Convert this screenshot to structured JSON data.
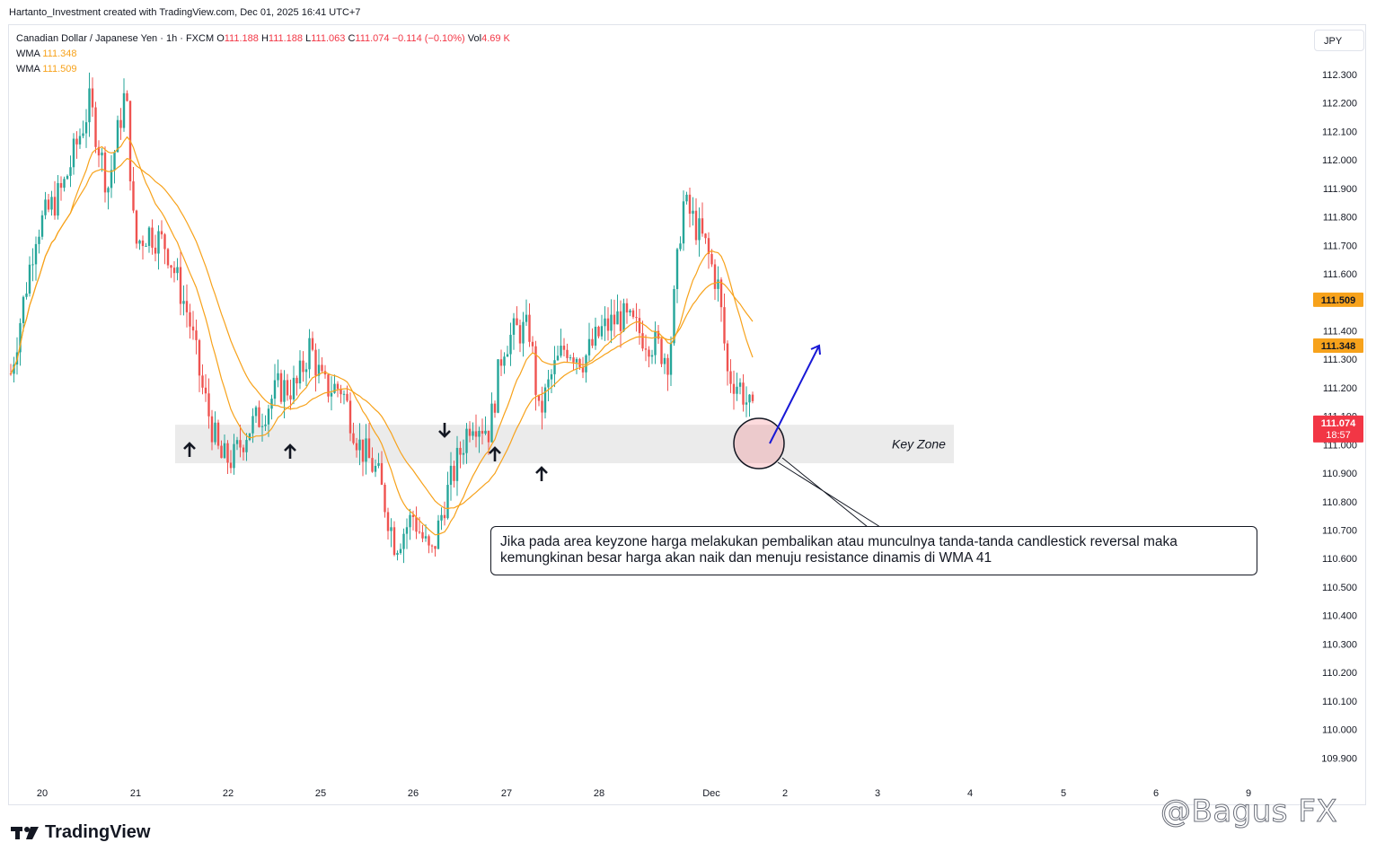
{
  "header": {
    "credit": "Hartanto_Investment created with TradingView.com, Dec 01, 2025 16:41 UTC+7"
  },
  "legend": {
    "symbol": "Canadian Dollar / Japanese Yen · 1h · FXCM",
    "o_label": "O",
    "o": "111.188",
    "h_label": "H",
    "h": "111.188",
    "l_label": "L",
    "l": "111.063",
    "c_label": "C",
    "c": "111.074",
    "chg": "−0.114 (−0.10%)",
    "vol_label": "Vol",
    "vol": "4.69 K",
    "wma1_label": "WMA",
    "wma1": "111.348",
    "wma2_label": "WMA",
    "wma2": "111.509"
  },
  "currency_button": "JPY",
  "colors": {
    "up": "#26a69a",
    "down": "#ef5350",
    "wma": "#f7a21b",
    "price_tag": "#f23645",
    "arrow_blue": "#1919d6",
    "zone": "#ebebeb"
  },
  "chart_data": {
    "type": "candlestick",
    "y_ticks": [
      "112.300",
      "112.200",
      "112.100",
      "112.000",
      "111.900",
      "111.800",
      "111.700",
      "111.600",
      "111.500",
      "111.400",
      "111.300",
      "111.200",
      "111.100",
      "111.000",
      "110.900",
      "110.800",
      "110.700",
      "110.600",
      "110.500",
      "110.400",
      "110.300",
      "110.200",
      "110.100",
      "110.000",
      "109.900"
    ],
    "x_ticks": [
      "20",
      "21",
      "22",
      "25",
      "26",
      "27",
      "28",
      "Dec",
      "2",
      "3",
      "4",
      "5",
      "6",
      "9"
    ],
    "ylim": [
      109.85,
      112.35
    ],
    "price_tags": [
      {
        "value": "111.509",
        "y": 111.509,
        "color": "#f7a21b"
      },
      {
        "value": "111.348",
        "y": 111.348,
        "color": "#f7a21b"
      },
      {
        "value": "111.074",
        "sub": "18:57",
        "y": 111.074,
        "color": "#f23645"
      }
    ],
    "key_zone": {
      "label": "Key Zone",
      "top": 111.07,
      "bottom": 110.935
    },
    "anchors": [
      {
        "date": "20",
        "price": 111.3
      },
      {
        "date": "21",
        "price": 112.2
      },
      {
        "date": "22",
        "price": 111.1
      },
      {
        "date": "25",
        "price": 111.15
      },
      {
        "date": "26",
        "price": 110.7
      },
      {
        "date": "27",
        "price": 111.05
      },
      {
        "date": "28",
        "price": 111.4
      },
      {
        "date": "Dec",
        "price": 111.7
      },
      {
        "date": "Dec",
        "price": 111.074
      }
    ],
    "wma": [
      {
        "name": "WMA",
        "value": "111.348"
      },
      {
        "name": "WMA",
        "value": "111.509"
      }
    ],
    "annotation": "Jika pada area keyzone harga melakukan pembalikan atau munculnya tanda-tanda candlestick reversal maka kemungkinan besar harga akan naik dan menuju resistance dinamis di WMA 41"
  },
  "branding": {
    "logo_text": "TradingView",
    "watermark": "@Bagus FX"
  }
}
